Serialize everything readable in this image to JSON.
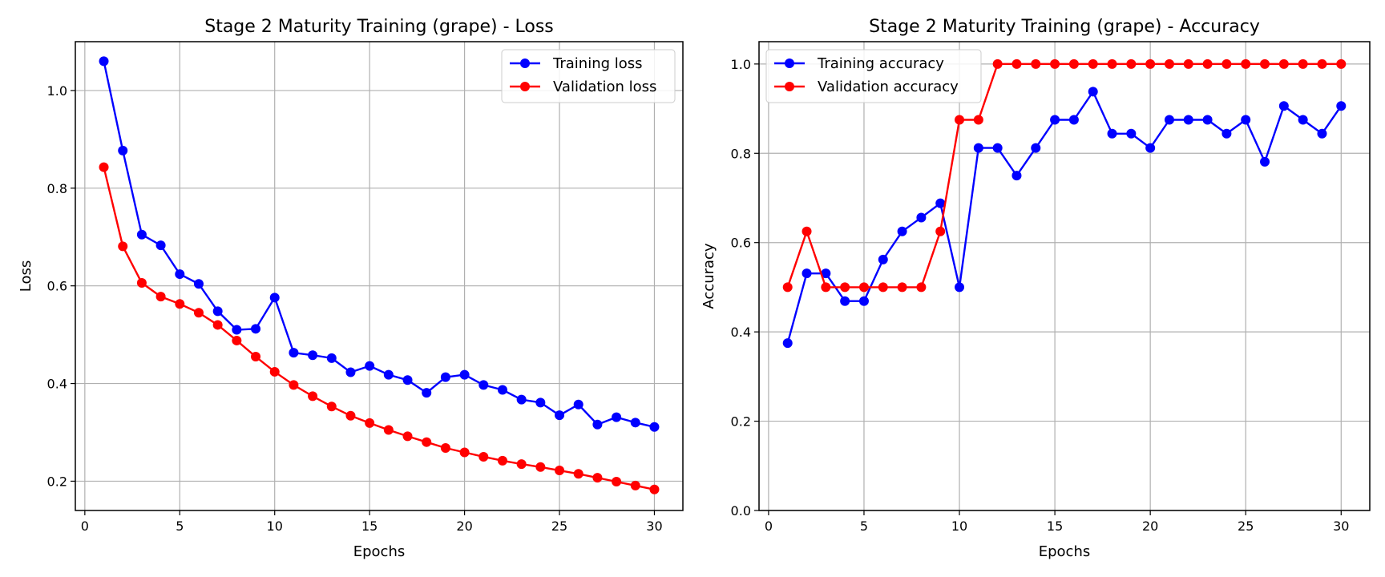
{
  "colors": {
    "training": "#0000ff",
    "validation": "#ff0000",
    "grid": "#b0b0b0",
    "axis": "#000000"
  },
  "chart_data": [
    {
      "type": "line",
      "title": "Stage 2 Maturity Training (grape) - Loss",
      "xlabel": "Epochs",
      "ylabel": "Loss",
      "xlim": [
        -0.5,
        31.5
      ],
      "ylim": [
        0.14,
        1.1
      ],
      "xticks": [
        0,
        5,
        10,
        15,
        20,
        25,
        30
      ],
      "yticks": [
        0.2,
        0.4,
        0.6,
        0.8,
        1.0
      ],
      "ytick_labels": [
        "0.2",
        "0.4",
        "0.6",
        "0.8",
        "1.0"
      ],
      "grid": true,
      "legend_position": "upper right",
      "x": [
        1,
        2,
        3,
        4,
        5,
        6,
        7,
        8,
        9,
        10,
        11,
        12,
        13,
        14,
        15,
        16,
        17,
        18,
        19,
        20,
        21,
        22,
        23,
        24,
        25,
        26,
        27,
        28,
        29,
        30
      ],
      "series": [
        {
          "name": "Training loss",
          "color": "#0000ff",
          "values": [
            1.06,
            0.877,
            0.705,
            0.683,
            0.624,
            0.604,
            0.548,
            0.51,
            0.512,
            0.576,
            0.463,
            0.458,
            0.452,
            0.423,
            0.436,
            0.418,
            0.407,
            0.381,
            0.413,
            0.418,
            0.397,
            0.387,
            0.367,
            0.361,
            0.335,
            0.357,
            0.316,
            0.331,
            0.32,
            0.311
          ]
        },
        {
          "name": "Validation loss",
          "color": "#ff0000",
          "values": [
            0.843,
            0.681,
            0.606,
            0.578,
            0.563,
            0.545,
            0.52,
            0.488,
            0.455,
            0.424,
            0.397,
            0.374,
            0.353,
            0.334,
            0.319,
            0.305,
            0.292,
            0.28,
            0.268,
            0.259,
            0.25,
            0.242,
            0.235,
            0.229,
            0.222,
            0.215,
            0.207,
            0.199,
            0.191,
            0.183
          ]
        }
      ]
    },
    {
      "type": "line",
      "title": "Stage 2 Maturity Training (grape) - Accuracy",
      "xlabel": "Epochs",
      "ylabel": "Accuracy",
      "xlim": [
        -0.5,
        31.5
      ],
      "ylim": [
        0.0,
        1.05
      ],
      "xticks": [
        0,
        5,
        10,
        15,
        20,
        25,
        30
      ],
      "yticks": [
        0.0,
        0.2,
        0.4,
        0.6,
        0.8,
        1.0
      ],
      "ytick_labels": [
        "0.0",
        "0.2",
        "0.4",
        "0.6",
        "0.8",
        "1.0"
      ],
      "grid": true,
      "legend_position": "upper left",
      "x": [
        1,
        2,
        3,
        4,
        5,
        6,
        7,
        8,
        9,
        10,
        11,
        12,
        13,
        14,
        15,
        16,
        17,
        18,
        19,
        20,
        21,
        22,
        23,
        24,
        25,
        26,
        27,
        28,
        29,
        30
      ],
      "series": [
        {
          "name": "Training accuracy",
          "color": "#0000ff",
          "values": [
            0.375,
            0.531,
            0.531,
            0.469,
            0.469,
            0.562,
            0.625,
            0.656,
            0.688,
            0.5,
            0.812,
            0.812,
            0.75,
            0.812,
            0.875,
            0.875,
            0.938,
            0.844,
            0.844,
            0.812,
            0.875,
            0.875,
            0.875,
            0.844,
            0.875,
            0.781,
            0.906,
            0.875,
            0.844,
            0.906
          ]
        },
        {
          "name": "Validation accuracy",
          "color": "#ff0000",
          "values": [
            0.5,
            0.625,
            0.5,
            0.5,
            0.5,
            0.5,
            0.5,
            0.5,
            0.625,
            0.875,
            0.875,
            1.0,
            1.0,
            1.0,
            1.0,
            1.0,
            1.0,
            1.0,
            1.0,
            1.0,
            1.0,
            1.0,
            1.0,
            1.0,
            1.0,
            1.0,
            1.0,
            1.0,
            1.0,
            1.0
          ]
        }
      ]
    }
  ]
}
